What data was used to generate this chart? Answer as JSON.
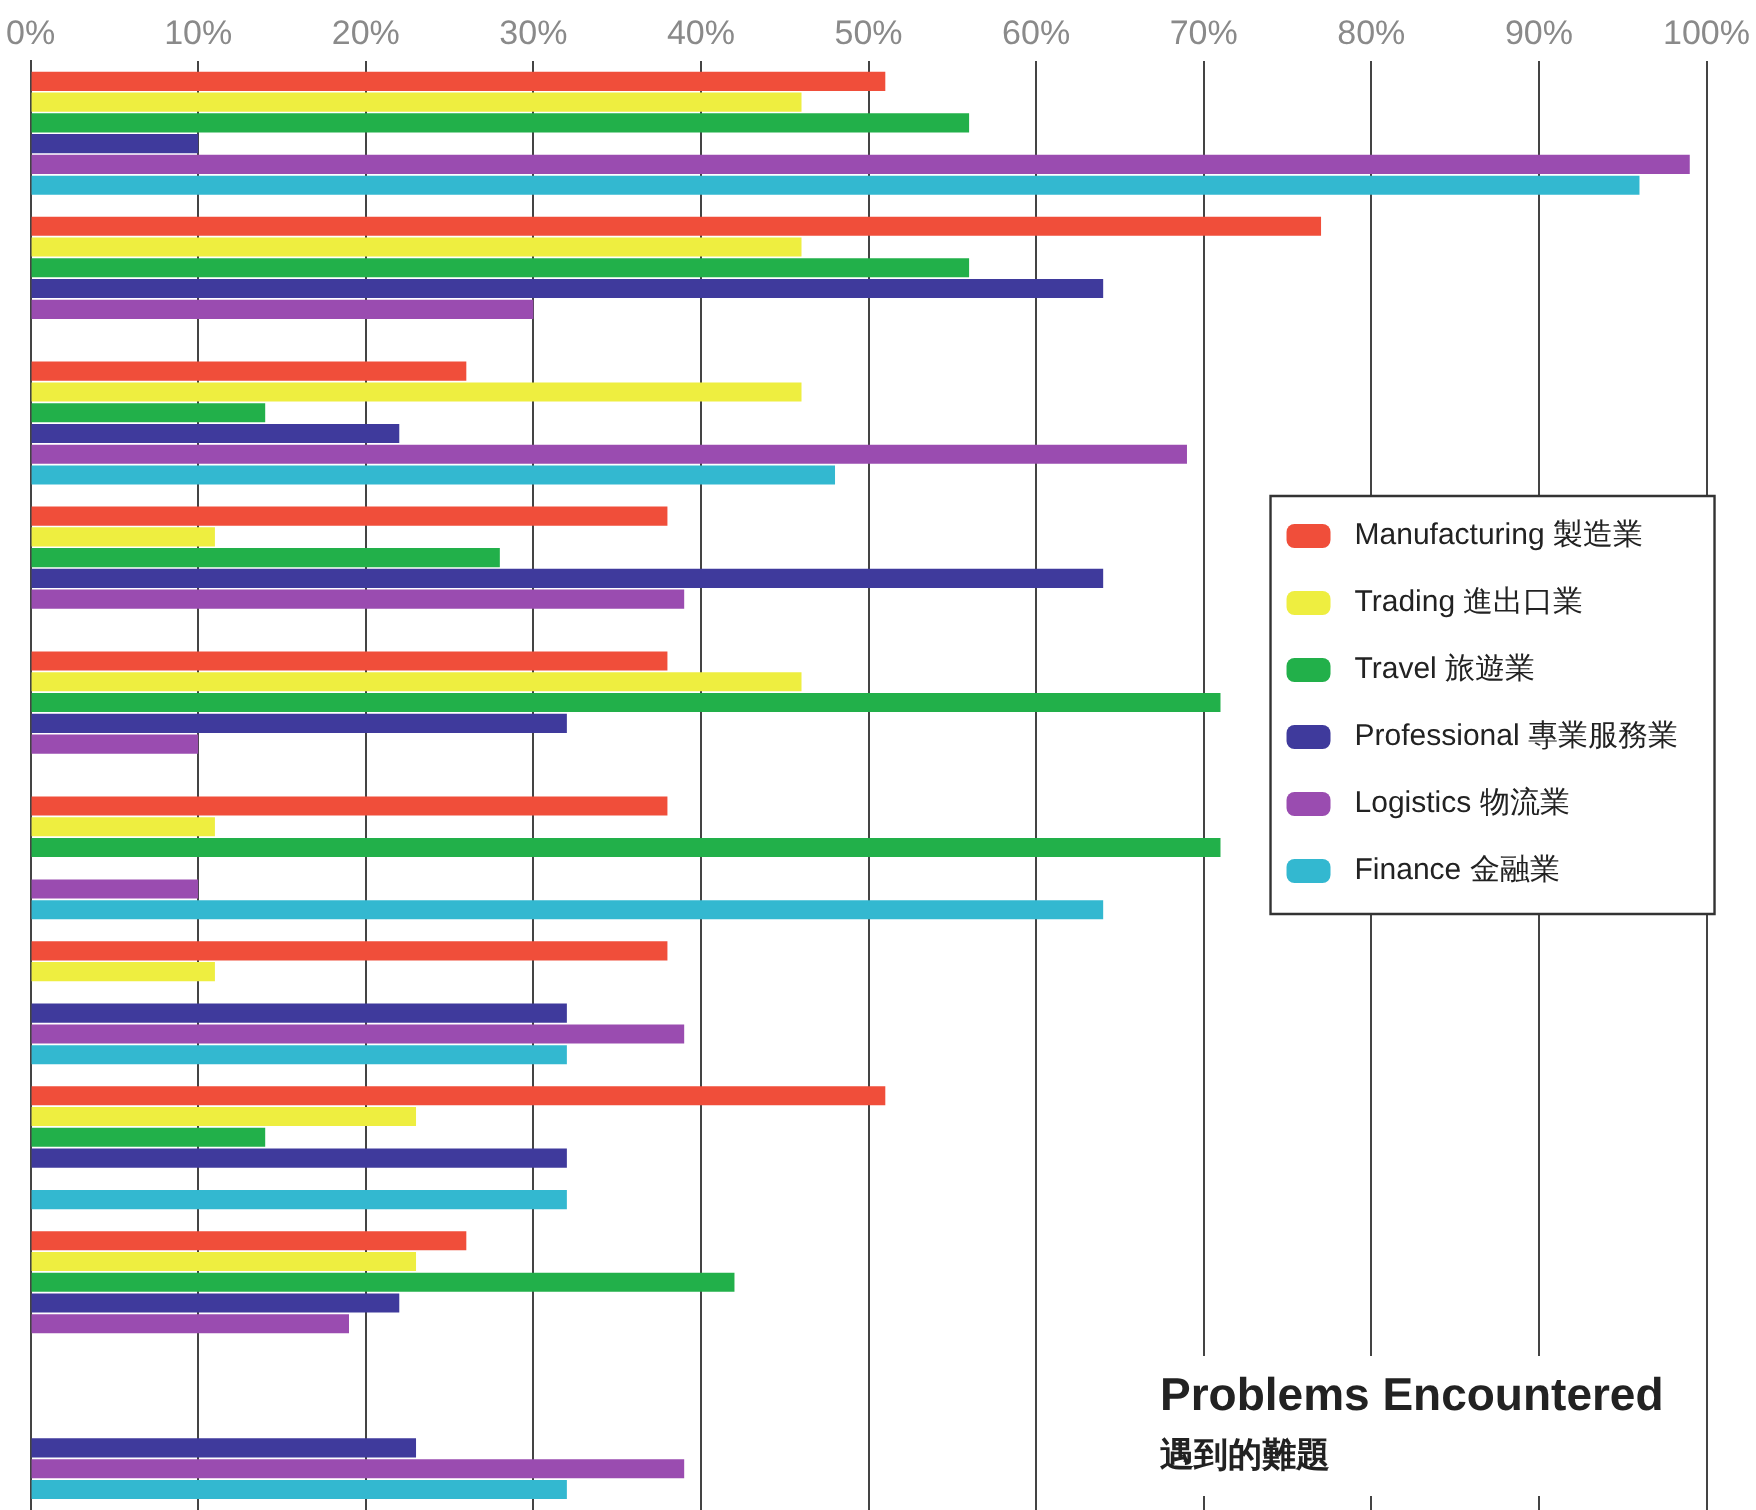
{
  "chart_data": {
    "type": "bar",
    "orientation": "horizontal",
    "title": "Problems Encountered",
    "subtitle": "遇到的難題",
    "categories": [
      null,
      null,
      null,
      null,
      null,
      null,
      null,
      null,
      null,
      null
    ],
    "series": [
      {
        "name": "Manufacturing 製造業",
        "color": "#f04e3a",
        "values": [
          51,
          77,
          26,
          38,
          38,
          38,
          38,
          51,
          26,
          null
        ]
      },
      {
        "name": "Trading 進出口業",
        "color": "#eeee40",
        "values": [
          46,
          46,
          46,
          11,
          46,
          11,
          11,
          23,
          23,
          null
        ]
      },
      {
        "name": "Travel 旅遊業",
        "color": "#22b04a",
        "values": [
          56,
          56,
          14,
          28,
          71,
          71,
          null,
          14,
          42,
          null
        ]
      },
      {
        "name": "Professional 專業服務業",
        "color": "#3f3a9c",
        "values": [
          10,
          64,
          22,
          64,
          32,
          null,
          32,
          32,
          22,
          23
        ]
      },
      {
        "name": "Logistics 物流業",
        "color": "#9a4cb0",
        "values": [
          99,
          30,
          69,
          39,
          10,
          10,
          39,
          null,
          19,
          39
        ]
      },
      {
        "name": "Finance 金融業",
        "color": "#33b8d0",
        "values": [
          96,
          null,
          48,
          null,
          null,
          64,
          32,
          32,
          null,
          32
        ]
      }
    ],
    "xlim": [
      0,
      100
    ],
    "xticks": [
      {
        "value": 0,
        "label": "0%"
      },
      {
        "value": 10,
        "label": "10%"
      },
      {
        "value": 20,
        "label": "20%"
      },
      {
        "value": 30,
        "label": "30%"
      },
      {
        "value": 40,
        "label": "40%"
      },
      {
        "value": 50,
        "label": "50%"
      },
      {
        "value": 60,
        "label": "60%"
      },
      {
        "value": 70,
        "label": "70%"
      },
      {
        "value": 80,
        "label": "80%"
      },
      {
        "value": 90,
        "label": "90%"
      },
      {
        "value": 100,
        "label": "100%"
      }
    ],
    "grid": "x",
    "legend": "right",
    "tick_labels": "x"
  }
}
